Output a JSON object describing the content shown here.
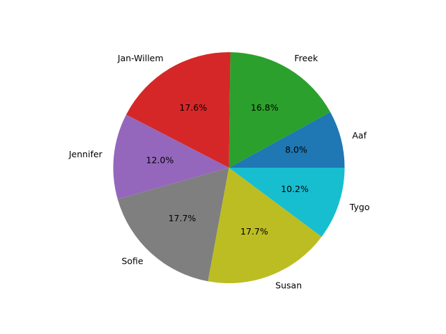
{
  "chart_data": {
    "type": "pie",
    "categories": [
      "Aaf",
      "Freek",
      "Jan-Willem",
      "Jennifer",
      "Sofie",
      "Susan",
      "Tygo"
    ],
    "values": [
      8.0,
      16.8,
      17.6,
      12.0,
      17.7,
      17.7,
      10.2
    ],
    "value_labels": [
      "8.0%",
      "16.8%",
      "17.6%",
      "12.0%",
      "17.7%",
      "17.7%",
      "10.2%"
    ],
    "colors": [
      "#1f77b4",
      "#2ca02c",
      "#d62728",
      "#9467bd",
      "#7f7f7f",
      "#bcbd22",
      "#17becf"
    ],
    "start_angle_deg": 0,
    "direction": "counterclockwise",
    "title": "",
    "legend": "none"
  }
}
